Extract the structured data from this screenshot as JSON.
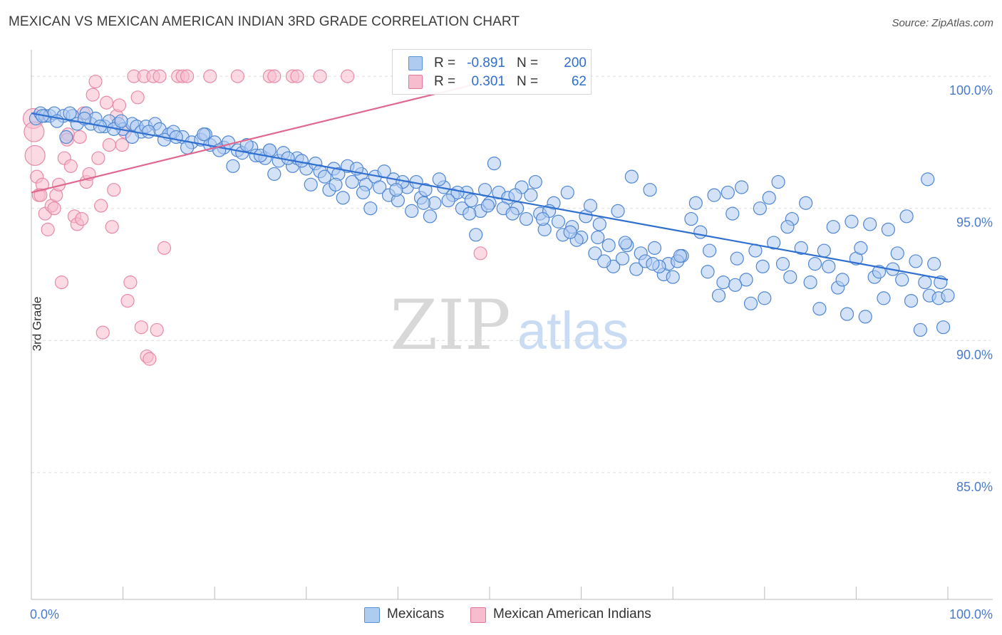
{
  "title": "MEXICAN VS MEXICAN AMERICAN INDIAN 3RD GRADE CORRELATION CHART",
  "source": "Source: ZipAtlas.com",
  "watermark": {
    "zip": "ZIP",
    "atlas": "atlas"
  },
  "legend": {
    "r_label": "R =",
    "n_label": "N =",
    "rows": [
      {
        "name": "Mexicans",
        "r": "-0.891",
        "n": "200",
        "fill": "#aecbf0",
        "stroke": "#5b8fd6"
      },
      {
        "name": "Mexican American Indians",
        "r": "0.301",
        "n": "62",
        "fill": "#f7bccd",
        "stroke": "#e07898"
      }
    ]
  },
  "colors": {
    "blue_fill": "#aecbf0",
    "blue_stroke": "#4f86d3",
    "blue_line": "#2f6fd0",
    "pink_fill": "#f7bccd",
    "pink_stroke": "#e88aa6",
    "pink_line": "#e0678f",
    "tick_text": "#4a7bd0",
    "grid": "#dcdcdc"
  },
  "chart_data": {
    "type": "scatter",
    "title": "MEXICAN VS MEXICAN AMERICAN INDIAN 3RD GRADE CORRELATION CHART",
    "xlabel": "",
    "ylabel": "3rd Grade",
    "xlim": [
      0,
      100
    ],
    "ylim": [
      80.2,
      101.0
    ],
    "x_tick_labels": [
      "0.0%",
      "100.0%"
    ],
    "y_ticks": [
      100,
      95,
      90,
      85
    ],
    "y_tick_labels": [
      "100.0%",
      "95.0%",
      "90.0%",
      "85.0%"
    ],
    "grid": true,
    "series": [
      {
        "name": "Mexicans",
        "r": -0.891,
        "n": 200,
        "trend": {
          "x": [
            0,
            100
          ],
          "y": [
            98.6,
            92.3
          ]
        },
        "points": [
          [
            0.5,
            98.4
          ],
          [
            1.0,
            98.6
          ],
          [
            1.5,
            98.5
          ],
          [
            2.0,
            98.5
          ],
          [
            2.5,
            98.6
          ],
          [
            3.5,
            98.5
          ],
          [
            4.5,
            98.5
          ],
          [
            5.0,
            98.2
          ],
          [
            6.0,
            98.6
          ],
          [
            6.5,
            98.2
          ],
          [
            7.0,
            98.4
          ],
          [
            8.0,
            98.1
          ],
          [
            8.5,
            98.3
          ],
          [
            9.5,
            98.2
          ],
          [
            10.0,
            98.0
          ],
          [
            11.0,
            98.2
          ],
          [
            11.5,
            98.1
          ],
          [
            12.0,
            97.9
          ],
          [
            12.5,
            98.1
          ],
          [
            13.5,
            98.2
          ],
          [
            14.0,
            98.0
          ],
          [
            15.0,
            97.8
          ],
          [
            15.5,
            97.9
          ],
          [
            16.5,
            97.7
          ],
          [
            17.5,
            97.5
          ],
          [
            18.5,
            97.6
          ],
          [
            19.0,
            97.8
          ],
          [
            19.5,
            97.4
          ],
          [
            20.0,
            97.5
          ],
          [
            21.0,
            97.3
          ],
          [
            21.5,
            97.5
          ],
          [
            22.5,
            97.2
          ],
          [
            23.0,
            97.1
          ],
          [
            24.0,
            97.3
          ],
          [
            24.5,
            97.0
          ],
          [
            25.5,
            96.9
          ],
          [
            26.0,
            97.2
          ],
          [
            27.0,
            96.8
          ],
          [
            27.5,
            97.1
          ],
          [
            28.5,
            96.6
          ],
          [
            29.0,
            96.9
          ],
          [
            30.0,
            96.5
          ],
          [
            31.0,
            96.7
          ],
          [
            31.5,
            96.4
          ],
          [
            32.0,
            96.2
          ],
          [
            33.0,
            96.5
          ],
          [
            33.5,
            96.3
          ],
          [
            34.5,
            96.6
          ],
          [
            35.0,
            96.0
          ],
          [
            36.0,
            96.3
          ],
          [
            36.5,
            95.9
          ],
          [
            37.5,
            96.2
          ],
          [
            38.0,
            95.8
          ],
          [
            39.0,
            95.5
          ],
          [
            39.5,
            96.1
          ],
          [
            40.0,
            95.3
          ],
          [
            41.0,
            95.8
          ],
          [
            42.0,
            96.0
          ],
          [
            42.5,
            95.4
          ],
          [
            43.0,
            95.7
          ],
          [
            44.0,
            95.2
          ],
          [
            45.0,
            95.8
          ],
          [
            46.0,
            95.5
          ],
          [
            47.0,
            95.0
          ],
          [
            47.5,
            95.6
          ],
          [
            48.0,
            95.3
          ],
          [
            49.0,
            94.9
          ],
          [
            49.5,
            95.7
          ],
          [
            50.0,
            95.2
          ],
          [
            51.0,
            95.6
          ],
          [
            52.0,
            95.4
          ],
          [
            53.0,
            95.0
          ],
          [
            54.0,
            94.6
          ],
          [
            54.5,
            95.5
          ],
          [
            55.5,
            94.8
          ],
          [
            56.0,
            94.2
          ],
          [
            57.0,
            95.2
          ],
          [
            57.5,
            94.5
          ],
          [
            58.0,
            94.0
          ],
          [
            59.0,
            94.3
          ],
          [
            60.0,
            93.9
          ],
          [
            60.5,
            94.7
          ],
          [
            61.5,
            93.3
          ],
          [
            62.0,
            94.4
          ],
          [
            63.0,
            93.6
          ],
          [
            63.5,
            92.8
          ],
          [
            64.5,
            93.1
          ],
          [
            65.0,
            93.6
          ],
          [
            66.0,
            92.7
          ],
          [
            66.5,
            93.3
          ],
          [
            67.0,
            93.0
          ],
          [
            68.0,
            93.5
          ],
          [
            69.0,
            92.5
          ],
          [
            69.5,
            92.9
          ],
          [
            70.0,
            92.4
          ],
          [
            71.0,
            93.2
          ],
          [
            72.0,
            94.6
          ],
          [
            73.0,
            94.1
          ],
          [
            74.0,
            93.4
          ],
          [
            75.0,
            91.7
          ],
          [
            75.5,
            92.2
          ],
          [
            76.0,
            95.6
          ],
          [
            77.0,
            93.1
          ],
          [
            78.0,
            92.3
          ],
          [
            78.5,
            91.4
          ],
          [
            79.0,
            93.4
          ],
          [
            80.0,
            91.6
          ],
          [
            81.0,
            93.7
          ],
          [
            82.0,
            92.9
          ],
          [
            83.0,
            94.6
          ],
          [
            84.0,
            93.5
          ],
          [
            85.0,
            92.2
          ],
          [
            86.0,
            91.2
          ],
          [
            87.0,
            92.8
          ],
          [
            88.0,
            92.0
          ],
          [
            89.0,
            91.0
          ],
          [
            90.0,
            93.1
          ],
          [
            91.0,
            90.9
          ],
          [
            92.0,
            92.4
          ],
          [
            93.0,
            91.6
          ],
          [
            94.0,
            92.7
          ],
          [
            95.0,
            92.3
          ],
          [
            96.0,
            91.5
          ],
          [
            97.0,
            90.4
          ],
          [
            97.5,
            92.2
          ],
          [
            98.0,
            91.7
          ],
          [
            98.5,
            92.9
          ],
          [
            99.0,
            91.6
          ],
          [
            99.5,
            90.5
          ],
          [
            100.0,
            91.7
          ],
          [
            3.8,
            97.7
          ],
          [
            9.0,
            98.0
          ],
          [
            11.0,
            97.7
          ],
          [
            14.5,
            97.6
          ],
          [
            17.0,
            97.3
          ],
          [
            20.5,
            97.2
          ],
          [
            22.0,
            96.6
          ],
          [
            25.0,
            97.0
          ],
          [
            26.5,
            96.3
          ],
          [
            28.0,
            96.9
          ],
          [
            30.5,
            95.9
          ],
          [
            32.5,
            95.7
          ],
          [
            34.0,
            95.4
          ],
          [
            35.5,
            96.5
          ],
          [
            37.0,
            95.0
          ],
          [
            38.5,
            96.4
          ],
          [
            40.5,
            96.0
          ],
          [
            41.5,
            94.9
          ],
          [
            43.5,
            94.7
          ],
          [
            44.5,
            96.1
          ],
          [
            46.5,
            95.6
          ],
          [
            48.5,
            94.0
          ],
          [
            50.5,
            96.7
          ],
          [
            51.5,
            95.0
          ],
          [
            52.5,
            94.8
          ],
          [
            53.5,
            95.8
          ],
          [
            55.0,
            96.0
          ],
          [
            56.5,
            94.9
          ],
          [
            58.5,
            95.6
          ],
          [
            59.5,
            93.8
          ],
          [
            61.0,
            95.1
          ],
          [
            62.5,
            93.0
          ],
          [
            64.0,
            94.9
          ],
          [
            65.5,
            96.2
          ],
          [
            67.5,
            95.7
          ],
          [
            68.5,
            92.8
          ],
          [
            70.5,
            93.0
          ],
          [
            72.5,
            95.2
          ],
          [
            74.5,
            95.5
          ],
          [
            76.5,
            94.8
          ],
          [
            77.5,
            95.8
          ],
          [
            79.5,
            95.0
          ],
          [
            80.5,
            95.4
          ],
          [
            81.5,
            96.0
          ],
          [
            82.5,
            94.3
          ],
          [
            84.5,
            95.2
          ],
          [
            85.5,
            92.9
          ],
          [
            86.5,
            93.4
          ],
          [
            87.5,
            94.3
          ],
          [
            88.5,
            92.3
          ],
          [
            89.5,
            94.5
          ],
          [
            90.5,
            93.5
          ],
          [
            91.5,
            94.4
          ],
          [
            92.5,
            92.6
          ],
          [
            93.5,
            94.2
          ],
          [
            94.5,
            93.3
          ],
          [
            95.5,
            94.7
          ],
          [
            96.5,
            93.0
          ],
          [
            97.8,
            96.1
          ],
          [
            99.2,
            92.2
          ],
          [
            1.2,
            98.5
          ],
          [
            2.8,
            98.3
          ],
          [
            4.2,
            98.6
          ],
          [
            5.8,
            98.4
          ],
          [
            7.5,
            98.1
          ],
          [
            9.8,
            98.3
          ],
          [
            12.8,
            97.9
          ],
          [
            15.8,
            97.7
          ],
          [
            18.8,
            97.8
          ],
          [
            23.5,
            97.4
          ],
          [
            26.0,
            97.2
          ],
          [
            29.5,
            96.8
          ],
          [
            33.2,
            95.9
          ],
          [
            36.2,
            95.6
          ],
          [
            39.8,
            95.7
          ],
          [
            42.8,
            95.2
          ],
          [
            45.5,
            95.3
          ],
          [
            47.8,
            94.8
          ],
          [
            49.8,
            95.1
          ],
          [
            52.8,
            95.5
          ],
          [
            55.8,
            94.6
          ],
          [
            58.8,
            94.1
          ],
          [
            61.8,
            93.9
          ],
          [
            64.8,
            93.7
          ],
          [
            67.8,
            92.9
          ],
          [
            70.8,
            93.2
          ],
          [
            73.8,
            92.6
          ],
          [
            76.8,
            92.1
          ],
          [
            79.8,
            92.8
          ],
          [
            82.8,
            92.4
          ]
        ]
      },
      {
        "name": "Mexican American Indians",
        "r": 0.301,
        "n": 62,
        "trend": {
          "x": [
            0,
            52
          ],
          "y": [
            95.6,
            100.0
          ]
        },
        "points": [
          [
            0.2,
            98.4
          ],
          [
            0.3,
            97.9
          ],
          [
            0.4,
            97.0
          ],
          [
            0.6,
            96.2
          ],
          [
            0.8,
            95.5
          ],
          [
            1.2,
            95.9
          ],
          [
            1.5,
            94.8
          ],
          [
            1.8,
            94.2
          ],
          [
            2.2,
            95.1
          ],
          [
            2.7,
            95.5
          ],
          [
            3.0,
            95.9
          ],
          [
            3.3,
            92.2
          ],
          [
            3.6,
            96.9
          ],
          [
            4.0,
            97.8
          ],
          [
            4.3,
            96.6
          ],
          [
            4.7,
            94.7
          ],
          [
            5.0,
            94.4
          ],
          [
            5.3,
            97.7
          ],
          [
            5.7,
            98.6
          ],
          [
            6.0,
            96.0
          ],
          [
            6.3,
            96.3
          ],
          [
            6.7,
            99.3
          ],
          [
            7.0,
            99.8
          ],
          [
            7.3,
            96.9
          ],
          [
            7.6,
            95.1
          ],
          [
            7.8,
            90.3
          ],
          [
            8.2,
            99.0
          ],
          [
            8.5,
            97.4
          ],
          [
            8.8,
            94.3
          ],
          [
            9.0,
            95.7
          ],
          [
            9.3,
            98.5
          ],
          [
            9.6,
            98.9
          ],
          [
            9.9,
            97.4
          ],
          [
            10.2,
            97.9
          ],
          [
            10.5,
            91.5
          ],
          [
            10.8,
            92.2
          ],
          [
            11.2,
            100.0
          ],
          [
            11.6,
            99.2
          ],
          [
            12.0,
            90.5
          ],
          [
            12.3,
            100.0
          ],
          [
            12.6,
            89.4
          ],
          [
            12.9,
            89.3
          ],
          [
            13.3,
            100.0
          ],
          [
            13.7,
            90.4
          ],
          [
            14.0,
            100.0
          ],
          [
            14.5,
            93.5
          ],
          [
            16.0,
            100.0
          ],
          [
            16.5,
            100.0
          ],
          [
            17.0,
            100.0
          ],
          [
            19.5,
            100.0
          ],
          [
            22.5,
            100.0
          ],
          [
            26.0,
            100.0
          ],
          [
            26.5,
            100.0
          ],
          [
            28.5,
            100.0
          ],
          [
            29.0,
            100.0
          ],
          [
            31.5,
            100.0
          ],
          [
            34.5,
            100.0
          ],
          [
            49.0,
            93.3
          ],
          [
            2.5,
            95.0
          ],
          [
            1.0,
            95.5
          ],
          [
            5.5,
            94.6
          ],
          [
            3.9,
            97.6
          ]
        ]
      }
    ]
  }
}
